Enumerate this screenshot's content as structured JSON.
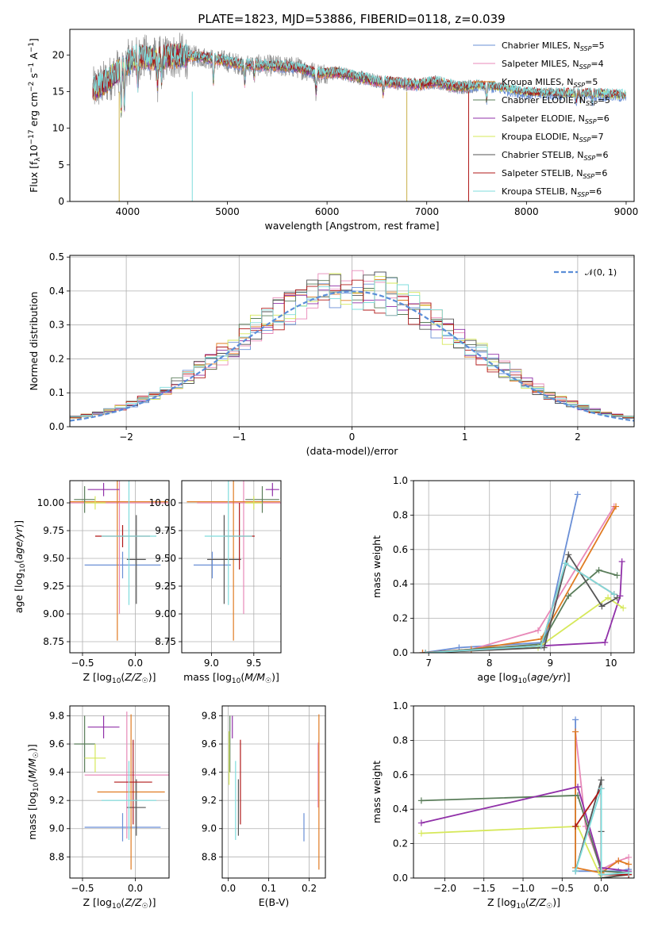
{
  "title": "PLATE=1823, MJD=53886, FIBERID=0118, z=0.039",
  "colors": {
    "chabrier_miles": "#6a8fd6",
    "salpeter_miles": "#e889b8",
    "kroupa_miles": "#e07b22",
    "chabrier_elodie": "#5a7d5a",
    "salpeter_elodie": "#9030a8",
    "kroupa_elodie": "#d6e85a",
    "chabrier_stelib": "#555555",
    "salpeter_stelib": "#b01818",
    "kroupa_stelib": "#7fdcdc",
    "normal": "#5b8ed8",
    "grid": "#b0b0b0"
  },
  "legend_spectrum": [
    {
      "key": "chabrier_miles",
      "label": "Chabrier MILES, N",
      "sub": "SSP",
      "suffix": "=5"
    },
    {
      "key": "salpeter_miles",
      "label": "Salpeter MILES, N",
      "sub": "SSP",
      "suffix": "=4"
    },
    {
      "key": "kroupa_miles",
      "label": "Kroupa MILES, N",
      "sub": "SSP",
      "suffix": "=5"
    },
    {
      "key": "chabrier_elodie",
      "label": "Chabrier ELODIE, N",
      "sub": "SSP",
      "suffix": "=5"
    },
    {
      "key": "salpeter_elodie",
      "label": "Salpeter ELODIE, N",
      "sub": "SSP",
      "suffix": "=6"
    },
    {
      "key": "kroupa_elodie",
      "label": "Kroupa ELODIE, N",
      "sub": "SSP",
      "suffix": "=7"
    },
    {
      "key": "chabrier_stelib",
      "label": "Chabrier STELIB, N",
      "sub": "SSP",
      "suffix": "=6"
    },
    {
      "key": "salpeter_stelib",
      "label": "Salpeter STELIB, N",
      "sub": "SSP",
      "suffix": "=6"
    },
    {
      "key": "kroupa_stelib",
      "label": "Kroupa STELIB, N",
      "sub": "SSP",
      "suffix": "=6"
    }
  ],
  "chart_data": [
    {
      "id": "spectrum",
      "type": "line",
      "xlabel": "wavelength [Angstrom, rest frame]",
      "ylabel": "Flux [f_λ10^-17 erg cm^-2 s^-1 A^-1]",
      "xlim": [
        3420,
        9080
      ],
      "ylim": [
        0,
        23.5
      ],
      "xticks": [
        4000,
        5000,
        6000,
        7000,
        8000,
        9000
      ],
      "yticks": [
        0,
        5,
        10,
        15,
        20
      ],
      "continuum": [
        [
          3650,
          15.2
        ],
        [
          3800,
          16.5
        ],
        [
          3950,
          18.5
        ],
        [
          4100,
          19.8
        ],
        [
          4300,
          19.5
        ],
        [
          4500,
          19.9
        ],
        [
          4700,
          19.8
        ],
        [
          4900,
          19.4
        ],
        [
          5100,
          18.8
        ],
        [
          5300,
          18.6
        ],
        [
          5500,
          18.5
        ],
        [
          5700,
          18.3
        ],
        [
          5900,
          17.5
        ],
        [
          6100,
          17.6
        ],
        [
          6300,
          17.0
        ],
        [
          6500,
          16.4
        ],
        [
          6700,
          16.2
        ],
        [
          6900,
          15.9
        ],
        [
          7100,
          16.3
        ],
        [
          7300,
          15.6
        ],
        [
          7500,
          15.8
        ],
        [
          7700,
          15.6
        ],
        [
          8000,
          14.8
        ],
        [
          8300,
          14.7
        ],
        [
          8600,
          14.7
        ],
        [
          8900,
          14.5
        ],
        [
          9000,
          14.4
        ]
      ]
    },
    {
      "id": "residuals",
      "type": "line",
      "xlabel": "(data-model)/error",
      "ylabel": "Normed distribution",
      "xlim": [
        -2.5,
        2.5
      ],
      "ylim": [
        0,
        0.505
      ],
      "xticks": [
        -2,
        -1,
        0,
        1,
        2
      ],
      "yticks": [
        0.0,
        0.1,
        0.2,
        0.3,
        0.4,
        0.5
      ],
      "ytick_labels": [
        "0.0",
        "0.1",
        "0.2",
        "0.3",
        "0.4",
        "0.5"
      ],
      "xtick_labels": [
        "−2",
        "−1",
        "0",
        "1",
        "2"
      ],
      "legend": "𝒩(0, 1)"
    },
    {
      "id": "age_vs_Z",
      "type": "scatter",
      "xlabel": "Z [log₁₀(Z/Z☉)]",
      "ylabel": "age  [log₁₀(age/yr)]",
      "xlim": [
        -0.62,
        0.32
      ],
      "ylim": [
        8.65,
        10.2
      ],
      "xticks": [
        -0.5,
        0.0
      ],
      "xtick_labels": [
        "−0.5",
        "0.0"
      ],
      "yticks": [
        8.75,
        9.0,
        9.25,
        9.5,
        9.75,
        10.0
      ],
      "ytick_labels": [
        "8.75",
        "9.00",
        "9.25",
        "9.50",
        "9.75",
        "10.00"
      ],
      "points": [
        {
          "key": "chabrier_miles",
          "x": -0.12,
          "xerr": 0.36,
          "y": 9.44,
          "yerr": 0.12
        },
        {
          "key": "salpeter_miles",
          "x": -0.15,
          "xerr": 0.48,
          "y": 10.0,
          "yerr": 1.0
        },
        {
          "key": "kroupa_miles",
          "x": -0.17,
          "xerr": 0.48,
          "y": 10.01,
          "yerr": 1.25
        },
        {
          "key": "chabrier_elodie",
          "x": -0.48,
          "xerr": 0.1,
          "y": 10.03,
          "yerr": 0.12
        },
        {
          "key": "salpeter_elodie",
          "x": -0.3,
          "xerr": 0.15,
          "y": 10.12,
          "yerr": 0.06
        },
        {
          "key": "kroupa_elodie",
          "x": -0.38,
          "xerr": 0.1,
          "y": 10.0,
          "yerr": 0.06
        },
        {
          "key": "chabrier_stelib",
          "x": 0.01,
          "xerr": 0.09,
          "y": 9.49,
          "yerr": 0.4
        },
        {
          "key": "salpeter_stelib",
          "x": -0.12,
          "xerr": 0.26,
          "y": 9.7,
          "yerr": 0.1
        },
        {
          "key": "kroupa_stelib",
          "x": -0.06,
          "xerr": 0.26,
          "y": 9.7,
          "yerr": 0.62
        }
      ]
    },
    {
      "id": "age_vs_mass",
      "type": "scatter",
      "xlabel": "mass [log₁₀(M/M☉)]",
      "ylabel": "",
      "xlim": [
        8.65,
        9.82
      ],
      "ylim": [
        8.65,
        10.2
      ],
      "xticks": [
        9.0,
        9.5
      ],
      "xtick_labels": [
        "9.0",
        "9.5"
      ],
      "yticks": [
        8.75,
        9.0,
        9.25,
        9.5,
        9.75,
        10.0
      ],
      "ytick_labels": [
        "8.75",
        "9.00",
        "9.25",
        "9.50",
        "9.75",
        "10.00"
      ],
      "points": [
        {
          "key": "chabrier_miles",
          "x": 9.01,
          "xerr": 0.22,
          "y": 9.44,
          "yerr": 0.12
        },
        {
          "key": "salpeter_miles",
          "x": 9.38,
          "xerr": 0.55,
          "y": 10.0,
          "yerr": 1.0
        },
        {
          "key": "kroupa_miles",
          "x": 9.26,
          "xerr": 0.55,
          "y": 10.01,
          "yerr": 1.25
        },
        {
          "key": "chabrier_elodie",
          "x": 9.6,
          "xerr": 0.2,
          "y": 10.03,
          "yerr": 0.12
        },
        {
          "key": "salpeter_elodie",
          "x": 9.72,
          "xerr": 0.08,
          "y": 10.12,
          "yerr": 0.06
        },
        {
          "key": "kroupa_elodie",
          "x": 9.5,
          "xerr": 0.1,
          "y": 10.0,
          "yerr": 0.06
        },
        {
          "key": "chabrier_stelib",
          "x": 9.15,
          "xerr": 0.2,
          "y": 9.49,
          "yerr": 0.4
        },
        {
          "key": "salpeter_stelib",
          "x": 9.33,
          "xerr": 0.18,
          "y": 9.7,
          "yerr": 0.3
        },
        {
          "key": "kroupa_stelib",
          "x": 9.2,
          "xerr": 0.28,
          "y": 9.7,
          "yerr": 0.62
        }
      ]
    },
    {
      "id": "weight_vs_age",
      "type": "line",
      "xlabel": "age  [log₁₀(age/yr)]",
      "ylabel": "mass weight",
      "xlim": [
        6.75,
        10.38
      ],
      "ylim": [
        0,
        1.0
      ],
      "xticks": [
        7,
        8,
        9,
        10
      ],
      "yticks": [
        0.0,
        0.2,
        0.4,
        0.6,
        0.8,
        1.0
      ],
      "ytick_labels": [
        "0.0",
        "0.2",
        "0.4",
        "0.6",
        "0.8",
        "1.0"
      ],
      "series": [
        {
          "key": "chabrier_miles",
          "points": [
            [
              6.9,
              0.0
            ],
            [
              7.5,
              0.03
            ],
            [
              8.9,
              0.06
            ],
            [
              9.45,
              0.92
            ]
          ]
        },
        {
          "key": "salpeter_miles",
          "points": [
            [
              6.9,
              0.0
            ],
            [
              7.7,
              0.02
            ],
            [
              8.8,
              0.13
            ],
            [
              10.05,
              0.85
            ]
          ]
        },
        {
          "key": "kroupa_miles",
          "points": [
            [
              6.9,
              0.0
            ],
            [
              7.7,
              0.02
            ],
            [
              8.85,
              0.08
            ],
            [
              10.08,
              0.85
            ]
          ]
        },
        {
          "key": "chabrier_elodie",
          "points": [
            [
              6.95,
              0.0
            ],
            [
              8.85,
              0.05
            ],
            [
              9.3,
              0.33
            ],
            [
              9.8,
              0.48
            ],
            [
              10.1,
              0.45
            ]
          ]
        },
        {
          "key": "salpeter_elodie",
          "points": [
            [
              6.95,
              0.0
            ],
            [
              8.85,
              0.04
            ],
            [
              9.9,
              0.06
            ],
            [
              10.15,
              0.33
            ],
            [
              10.18,
              0.53
            ]
          ]
        },
        {
          "key": "kroupa_elodie",
          "points": [
            [
              6.95,
              0.0
            ],
            [
              8.8,
              0.03
            ],
            [
              9.95,
              0.32
            ],
            [
              10.2,
              0.26
            ]
          ]
        },
        {
          "key": "chabrier_stelib",
          "points": [
            [
              6.95,
              0.0
            ],
            [
              8.9,
              0.03
            ],
            [
              9.3,
              0.57
            ],
            [
              9.85,
              0.27
            ],
            [
              10.1,
              0.32
            ]
          ]
        },
        {
          "key": "salpeter_stelib",
          "points": [
            [
              6.95,
              0.0
            ],
            [
              8.85,
              0.04
            ],
            [
              9.25,
              0.52
            ],
            [
              10.05,
              0.34
            ]
          ]
        },
        {
          "key": "kroupa_stelib",
          "points": [
            [
              6.95,
              0.0
            ],
            [
              8.85,
              0.04
            ],
            [
              9.25,
              0.52
            ],
            [
              10.05,
              0.34
            ]
          ]
        }
      ]
    },
    {
      "id": "mass_vs_Z",
      "type": "scatter",
      "xlabel": "Z [log₁₀(Z/Z☉)]",
      "ylabel": "mass [log₁₀(M/M☉)]",
      "xlim": [
        -0.62,
        0.32
      ],
      "ylim": [
        8.65,
        9.87
      ],
      "xticks": [
        -0.5,
        0.0
      ],
      "xtick_labels": [
        "−0.5",
        "0.0"
      ],
      "yticks": [
        8.8,
        9.0,
        9.2,
        9.4,
        9.6,
        9.8
      ],
      "ytick_labels": [
        "8.8",
        "9.0",
        "9.2",
        "9.4",
        "9.6",
        "9.8"
      ],
      "points": [
        {
          "key": "chabrier_miles",
          "x": -0.12,
          "xerr": 0.36,
          "y": 9.01,
          "yerr": 0.1
        },
        {
          "key": "salpeter_miles",
          "x": -0.08,
          "xerr": 0.4,
          "y": 9.38,
          "yerr": 0.45
        },
        {
          "key": "kroupa_miles",
          "x": -0.04,
          "xerr": 0.32,
          "y": 9.26,
          "yerr": 0.55
        },
        {
          "key": "chabrier_elodie",
          "x": -0.48,
          "xerr": 0.1,
          "y": 9.6,
          "yerr": 0.2
        },
        {
          "key": "salpeter_elodie",
          "x": -0.3,
          "xerr": 0.15,
          "y": 9.72,
          "yerr": 0.08
        },
        {
          "key": "kroupa_elodie",
          "x": -0.38,
          "xerr": 0.1,
          "y": 9.5,
          "yerr": 0.1
        },
        {
          "key": "chabrier_stelib",
          "x": 0.01,
          "xerr": 0.09,
          "y": 9.15,
          "yerr": 0.2
        },
        {
          "key": "salpeter_stelib",
          "x": -0.02,
          "xerr": 0.18,
          "y": 9.33,
          "yerr": 0.3
        },
        {
          "key": "kroupa_stelib",
          "x": -0.06,
          "xerr": 0.26,
          "y": 9.2,
          "yerr": 0.28
        }
      ]
    },
    {
      "id": "mass_vs_EBV",
      "type": "scatter",
      "xlabel": "E(B-V)",
      "ylabel": "",
      "xlim": [
        -0.015,
        0.24
      ],
      "ylim": [
        8.65,
        9.87
      ],
      "xticks": [
        0.0,
        0.1,
        0.2
      ],
      "xtick_labels": [
        "0.0",
        "0.1",
        "0.2"
      ],
      "yticks": [
        8.8,
        9.0,
        9.2,
        9.4,
        9.6,
        9.8
      ],
      "ytick_labels": [
        "8.8",
        "9.0",
        "9.2",
        "9.4",
        "9.6",
        "9.8"
      ],
      "points": [
        {
          "key": "chabrier_miles",
          "x": 0.187,
          "y": 9.01,
          "yerr": 0.1
        },
        {
          "key": "salpeter_miles",
          "x": 0.222,
          "y": 9.38,
          "yerr": 0.23
        },
        {
          "key": "kroupa_miles",
          "x": 0.224,
          "y": 9.26,
          "yerr": 0.55
        },
        {
          "key": "chabrier_elodie",
          "x": 0.004,
          "y": 9.6,
          "yerr": 0.2
        },
        {
          "key": "salpeter_elodie",
          "x": 0.01,
          "y": 9.72,
          "yerr": 0.08
        },
        {
          "key": "kroupa_elodie",
          "x": 0.002,
          "y": 9.5,
          "yerr": 0.19
        },
        {
          "key": "chabrier_stelib",
          "x": 0.025,
          "y": 9.15,
          "yerr": 0.2
        },
        {
          "key": "salpeter_stelib",
          "x": 0.03,
          "y": 9.33,
          "yerr": 0.3
        },
        {
          "key": "kroupa_stelib",
          "x": 0.018,
          "y": 9.2,
          "yerr": 0.28
        }
      ]
    },
    {
      "id": "weight_vs_Z",
      "type": "line",
      "xlabel": "Z [log₁₀(Z/Z☉)]",
      "ylabel": "mass weight",
      "xlim": [
        -2.4,
        0.42
      ],
      "ylim": [
        0,
        1.0
      ],
      "xticks": [
        -2.0,
        -1.5,
        -1.0,
        -0.5,
        0.0
      ],
      "xtick_labels": [
        "−2.0",
        "−1.5",
        "−1.0",
        "−0.5",
        "0.0"
      ],
      "yticks": [
        0.0,
        0.2,
        0.4,
        0.6,
        0.8,
        1.0
      ],
      "ytick_labels": [
        "0.0",
        "0.2",
        "0.4",
        "0.6",
        "0.8",
        "1.0"
      ],
      "series": [
        {
          "key": "chabrier_miles",
          "points": [
            [
              -0.33,
              0.92
            ],
            [
              -0.33,
              0.04
            ],
            [
              0.22,
              0.04
            ],
            [
              0.35,
              0.05
            ]
          ]
        },
        {
          "key": "salpeter_miles",
          "points": [
            [
              -0.33,
              0.85
            ],
            [
              -0.2,
              0.3
            ],
            [
              0.0,
              0.05
            ],
            [
              0.22,
              0.1
            ],
            [
              0.35,
              0.12
            ]
          ]
        },
        {
          "key": "kroupa_miles",
          "points": [
            [
              -0.33,
              0.85
            ],
            [
              -0.33,
              0.06
            ],
            [
              0.0,
              0.03
            ],
            [
              0.22,
              0.1
            ],
            [
              0.35,
              0.08
            ]
          ]
        },
        {
          "key": "chabrier_elodie",
          "points": [
            [
              -2.3,
              0.45
            ],
            [
              -0.3,
              0.48
            ],
            [
              0.0,
              0.04
            ],
            [
              0.35,
              0.03
            ]
          ]
        },
        {
          "key": "salpeter_elodie",
          "points": [
            [
              -2.3,
              0.32
            ],
            [
              -0.3,
              0.53
            ],
            [
              0.0,
              0.06
            ],
            [
              0.35,
              0.04
            ]
          ]
        },
        {
          "key": "kroupa_elodie",
          "points": [
            [
              -2.3,
              0.26
            ],
            [
              -0.3,
              0.3
            ],
            [
              0.0,
              0.0
            ],
            [
              0.35,
              0.02
            ]
          ]
        },
        {
          "key": "chabrier_stelib",
          "points": [
            [
              -0.33,
              0.04
            ],
            [
              0.0,
              0.57
            ],
            [
              0.0,
              0.27
            ],
            [
              0.0,
              0.0
            ],
            [
              0.35,
              0.02
            ]
          ]
        },
        {
          "key": "salpeter_stelib",
          "points": [
            [
              -0.33,
              0.3
            ],
            [
              0.0,
              0.52
            ],
            [
              0.0,
              0.02
            ],
            [
              0.35,
              0.02
            ]
          ]
        },
        {
          "key": "kroupa_stelib",
          "points": [
            [
              -0.33,
              0.04
            ],
            [
              0.0,
              0.52
            ],
            [
              0.0,
              0.02
            ],
            [
              0.35,
              0.03
            ]
          ]
        }
      ]
    }
  ]
}
